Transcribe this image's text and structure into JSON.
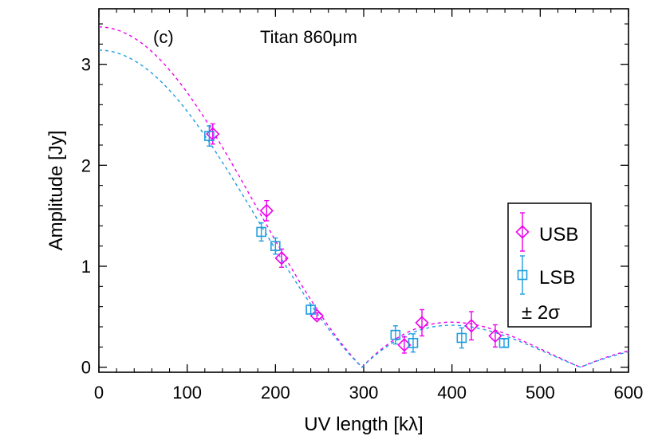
{
  "chart_data": {
    "type": "scatter",
    "annotations": {
      "panel": "(c)",
      "title": "Titan  860μm"
    },
    "xlabel": "UV length [kλ]",
    "ylabel": "Amplitude [Jy]",
    "xlim": [
      0,
      600
    ],
    "ylim": [
      -0.05,
      3.55
    ],
    "xticks": [
      "0",
      "100",
      "200",
      "300",
      "400",
      "500",
      "600"
    ],
    "yticks": [
      "0",
      "1",
      "2",
      "3"
    ],
    "grid": false,
    "legend_position": "right",
    "legend_note": "± 2σ",
    "colors": {
      "USB": "#ee00ee",
      "LSB": "#1e9de0"
    },
    "series": [
      {
        "name": "USB",
        "marker": "diamond",
        "points": [
          {
            "x": 129,
            "y": 2.31,
            "err": 0.1
          },
          {
            "x": 190,
            "y": 1.55,
            "err": 0.1
          },
          {
            "x": 207,
            "y": 1.08,
            "err": 0.09
          },
          {
            "x": 247,
            "y": 0.51,
            "err": 0.03
          },
          {
            "x": 346,
            "y": 0.22,
            "err": 0.08
          },
          {
            "x": 366,
            "y": 0.44,
            "err": 0.13
          },
          {
            "x": 422,
            "y": 0.41,
            "err": 0.14
          },
          {
            "x": 449,
            "y": 0.31,
            "err": 0.11
          }
        ]
      },
      {
        "name": "LSB",
        "marker": "square",
        "points": [
          {
            "x": 125,
            "y": 2.29,
            "err": 0.1
          },
          {
            "x": 184,
            "y": 1.34,
            "err": 0.09
          },
          {
            "x": 200,
            "y": 1.2,
            "err": 0.08
          },
          {
            "x": 240,
            "y": 0.57,
            "err": 0.04
          },
          {
            "x": 336,
            "y": 0.32,
            "err": 0.09
          },
          {
            "x": 356,
            "y": 0.24,
            "err": 0.09
          },
          {
            "x": 411,
            "y": 0.29,
            "err": 0.1
          },
          {
            "x": 459,
            "y": 0.24,
            "err": 0.04
          }
        ]
      }
    ],
    "model_curves": [
      {
        "series": "USB",
        "style": "dashed",
        "peak": 3.37,
        "first_null": 298,
        "second_null": 548
      },
      {
        "series": "LSB",
        "style": "dashed",
        "peak": 3.14,
        "first_null": 298,
        "second_null": 548
      }
    ]
  }
}
